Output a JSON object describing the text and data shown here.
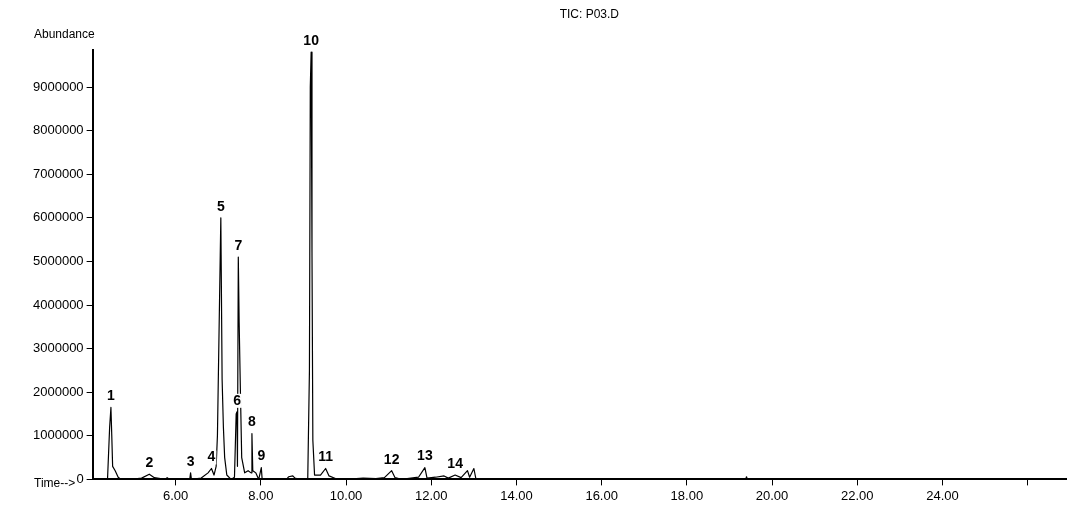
{
  "chart_data": {
    "type": "line",
    "title": "TIC: P03.D",
    "xlabel": "Time-->",
    "ylabel": "Abundance",
    "x": [
      4.17,
      4.4,
      4.45,
      4.48,
      4.5,
      4.52,
      4.58,
      4.65,
      4.72,
      4.95,
      5.2,
      5.38,
      5.5,
      5.75,
      5.8,
      5.86,
      6.33,
      6.35,
      6.37,
      6.6,
      6.76,
      6.84,
      6.9,
      6.95,
      6.98,
      7.02,
      7.06,
      7.09,
      7.12,
      7.15,
      7.2,
      7.3,
      7.38,
      7.42,
      7.44,
      7.45,
      7.47,
      7.49,
      7.52,
      7.55,
      7.62,
      7.7,
      7.77,
      7.79,
      7.81,
      7.88,
      7.95,
      8.01,
      8.03,
      8.6,
      8.65,
      8.75,
      8.8,
      8.9,
      9.1,
      9.14,
      9.16,
      9.18,
      9.2,
      9.22,
      9.26,
      9.4,
      9.52,
      9.6,
      9.75,
      10.0,
      10.4,
      10.7,
      10.9,
      11.07,
      11.15,
      11.3,
      11.7,
      11.85,
      11.9,
      12.1,
      12.3,
      12.4,
      12.56,
      12.7,
      12.85,
      12.9,
      13.0,
      13.05,
      19.38,
      19.4,
      19.42,
      26.9
    ],
    "series": [
      {
        "color": "#000000",
        "values": [
          0,
          0,
          1200000,
          1650000,
          1000000,
          300000,
          200000,
          50000,
          0,
          0,
          30000,
          120000,
          40000,
          0,
          40000,
          0,
          0,
          150000,
          0,
          30000,
          150000,
          250000,
          100000,
          300000,
          1000000,
          3500000,
          6000000,
          2300000,
          1200000,
          500000,
          100000,
          0,
          50000,
          1500000,
          1550000,
          300000,
          5100000,
          3600000,
          2000000,
          500000,
          150000,
          200000,
          150000,
          1050000,
          200000,
          150000,
          0,
          270000,
          0,
          0,
          60000,
          80000,
          30000,
          0,
          0,
          2500000,
          9000000,
          9800000,
          5200000,
          900000,
          100000,
          100000,
          250000,
          80000,
          20000,
          0,
          30000,
          20000,
          40000,
          200000,
          40000,
          0,
          50000,
          270000,
          30000,
          50000,
          80000,
          30000,
          100000,
          40000,
          200000,
          50000,
          250000,
          0,
          0,
          60000,
          0,
          0
        ]
      }
    ],
    "xlim": [
      4.05,
      26.9
    ],
    "ylim": [
      0,
      9850000
    ],
    "xticks": [
      {
        "value": 6,
        "label": "6.00"
      },
      {
        "value": 8,
        "label": "8.00"
      },
      {
        "value": 10,
        "label": "10.00"
      },
      {
        "value": 12,
        "label": "12.00"
      },
      {
        "value": 14,
        "label": "14.00"
      },
      {
        "value": 16,
        "label": "16.00"
      },
      {
        "value": 18,
        "label": "18.00"
      },
      {
        "value": 20,
        "label": "20.00"
      },
      {
        "value": 22,
        "label": "22.00"
      },
      {
        "value": 24,
        "label": "24.00"
      },
      {
        "value": 26,
        "label": null
      }
    ],
    "yticks": [
      0,
      1000000,
      2000000,
      3000000,
      4000000,
      5000000,
      6000000,
      7000000,
      8000000,
      9000000
    ],
    "grid": false,
    "legend": false,
    "marker": "none",
    "line_style": "solid",
    "annotations": [
      {
        "text": "1",
        "x": 4.48,
        "y": 1650000
      },
      {
        "text": "2",
        "x": 5.38,
        "y": 120000
      },
      {
        "text": "3",
        "x": 6.35,
        "y": 150000
      },
      {
        "text": "4",
        "x": 6.84,
        "y": 250000
      },
      {
        "text": "5",
        "x": 7.06,
        "y": 6000000
      },
      {
        "text": "6",
        "x": 7.44,
        "y": 1550000
      },
      {
        "text": "7",
        "x": 7.47,
        "y": 5100000
      },
      {
        "text": "8",
        "x": 7.79,
        "y": 1050000
      },
      {
        "text": "9",
        "x": 8.01,
        "y": 270000
      },
      {
        "text": "10",
        "x": 9.18,
        "y": 9800000
      },
      {
        "text": "11",
        "x": 9.52,
        "y": 250000
      },
      {
        "text": "12",
        "x": 11.07,
        "y": 200000
      },
      {
        "text": "13",
        "x": 11.85,
        "y": 270000
      },
      {
        "text": "14",
        "x": 12.56,
        "y": 100000
      }
    ]
  }
}
